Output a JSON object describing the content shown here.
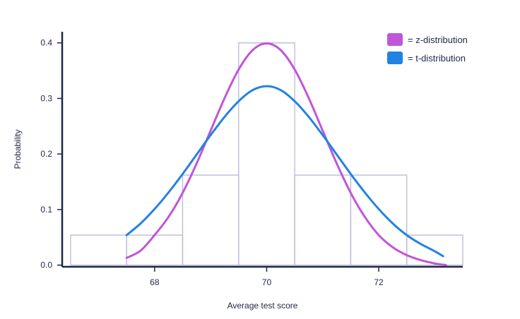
{
  "chart_data": {
    "type": "line",
    "title": "",
    "xlabel": "Average test score",
    "ylabel": "Probability",
    "xlim": [
      66.35,
      73.5
    ],
    "ylim": [
      -0.003,
      0.42
    ],
    "x_ticks": [
      68,
      70,
      72
    ],
    "x_tick_labels": [
      "68",
      "70",
      "72"
    ],
    "y_ticks": [
      0.0,
      0.1,
      0.2,
      0.3,
      0.4
    ],
    "y_tick_labels": [
      "0.0",
      "0.1",
      "0.2",
      "0.3",
      "0.4"
    ],
    "grid": false,
    "legend_position": "top-right",
    "histogram": {
      "bins": [
        {
          "x0": 66.5,
          "x1": 67.5,
          "value": 0.054
        },
        {
          "x0": 67.5,
          "x1": 68.5,
          "value": 0.054
        },
        {
          "x0": 68.5,
          "x1": 69.5,
          "value": 0.162
        },
        {
          "x0": 69.5,
          "x1": 70.5,
          "value": 0.4
        },
        {
          "x0": 70.5,
          "x1": 71.5,
          "value": 0.162
        },
        {
          "x0": 71.5,
          "x1": 72.5,
          "value": 0.162
        },
        {
          "x0": 72.5,
          "x1": 73.5,
          "value": 0.054
        }
      ],
      "color": "#b8b8d8"
    },
    "series": [
      {
        "name": "= z-distribution",
        "color": "#c155d8",
        "points": [
          [
            67.5,
            0.013
          ],
          [
            67.75,
            0.026
          ],
          [
            68.0,
            0.054
          ],
          [
            68.25,
            0.087
          ],
          [
            68.5,
            0.13
          ],
          [
            68.75,
            0.183
          ],
          [
            69.0,
            0.242
          ],
          [
            69.25,
            0.301
          ],
          [
            69.5,
            0.352
          ],
          [
            69.75,
            0.387
          ],
          [
            70.0,
            0.399
          ],
          [
            70.25,
            0.387
          ],
          [
            70.5,
            0.352
          ],
          [
            70.75,
            0.301
          ],
          [
            71.0,
            0.242
          ],
          [
            71.25,
            0.183
          ],
          [
            71.5,
            0.13
          ],
          [
            71.75,
            0.087
          ],
          [
            72.0,
            0.054
          ],
          [
            72.25,
            0.032
          ],
          [
            72.5,
            0.018
          ],
          [
            72.75,
            0.009
          ],
          [
            73.0,
            0.003
          ],
          [
            73.2,
            0.0
          ]
        ]
      },
      {
        "name": "= t-distribution",
        "color": "#2182e3",
        "points": [
          [
            67.5,
            0.054
          ],
          [
            67.75,
            0.075
          ],
          [
            68.0,
            0.101
          ],
          [
            68.25,
            0.131
          ],
          [
            68.5,
            0.164
          ],
          [
            68.75,
            0.199
          ],
          [
            69.0,
            0.234
          ],
          [
            69.25,
            0.267
          ],
          [
            69.5,
            0.295
          ],
          [
            69.75,
            0.315
          ],
          [
            70.0,
            0.322
          ],
          [
            70.25,
            0.315
          ],
          [
            70.5,
            0.295
          ],
          [
            70.75,
            0.267
          ],
          [
            71.0,
            0.234
          ],
          [
            71.25,
            0.199
          ],
          [
            71.5,
            0.164
          ],
          [
            71.75,
            0.131
          ],
          [
            72.0,
            0.101
          ],
          [
            72.25,
            0.075
          ],
          [
            72.5,
            0.054
          ],
          [
            72.75,
            0.038
          ],
          [
            73.0,
            0.025
          ],
          [
            73.15,
            0.016
          ]
        ]
      }
    ]
  }
}
